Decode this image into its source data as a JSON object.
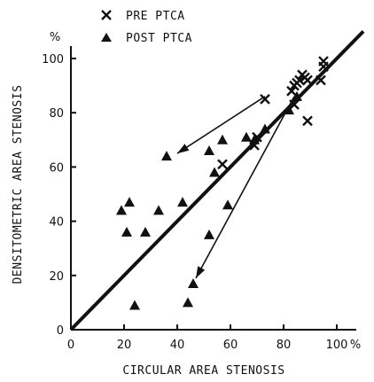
{
  "chart_data": {
    "type": "scatter",
    "title": "",
    "xlabel": "CIRCULAR AREA STENOSIS",
    "ylabel": "DENSITOMETRIC AREA STENOSIS",
    "x_unit": "%",
    "y_unit": "%",
    "xlim": [
      0,
      100
    ],
    "ylim": [
      0,
      100
    ],
    "x_ticks": [
      "0",
      "20",
      "40",
      "60",
      "80",
      "100"
    ],
    "y_ticks": [
      "0",
      "20",
      "40",
      "60",
      "80",
      "100"
    ],
    "legend": {
      "position": "top-left"
    },
    "series": [
      {
        "name": "PRE PTCA",
        "marker": "x",
        "points": [
          [
            69,
            68
          ],
          [
            70,
            71
          ],
          [
            73,
            85
          ],
          [
            57,
            61
          ],
          [
            83,
            88
          ],
          [
            84,
            90
          ],
          [
            85,
            91
          ],
          [
            86,
            92
          ],
          [
            87,
            94
          ],
          [
            88,
            93
          ],
          [
            89,
            92
          ],
          [
            84,
            83
          ],
          [
            89,
            77
          ],
          [
            94,
            92
          ],
          [
            95,
            97
          ],
          [
            95,
            99
          ]
        ]
      },
      {
        "name": "POST PTCA",
        "marker": "triangle",
        "points": [
          [
            19,
            44
          ],
          [
            21,
            36
          ],
          [
            22,
            47
          ],
          [
            24,
            9
          ],
          [
            28,
            36
          ],
          [
            33,
            44
          ],
          [
            36,
            64
          ],
          [
            42,
            47
          ],
          [
            44,
            10
          ],
          [
            46,
            17
          ],
          [
            52,
            35
          ],
          [
            52,
            66
          ],
          [
            54,
            58
          ],
          [
            57,
            70
          ],
          [
            59,
            46
          ],
          [
            66,
            71
          ],
          [
            69,
            70
          ],
          [
            73,
            74
          ],
          [
            82,
            81
          ],
          [
            85,
            86
          ]
        ]
      }
    ],
    "identity_line": {
      "from": [
        0,
        0
      ],
      "to": [
        110,
        110
      ]
    },
    "arrows": [
      {
        "from": [
          73,
          86
        ],
        "to": [
          40,
          65
        ]
      },
      {
        "from": [
          84,
          86
        ],
        "to": [
          47,
          19
        ]
      }
    ],
    "grid": false
  }
}
